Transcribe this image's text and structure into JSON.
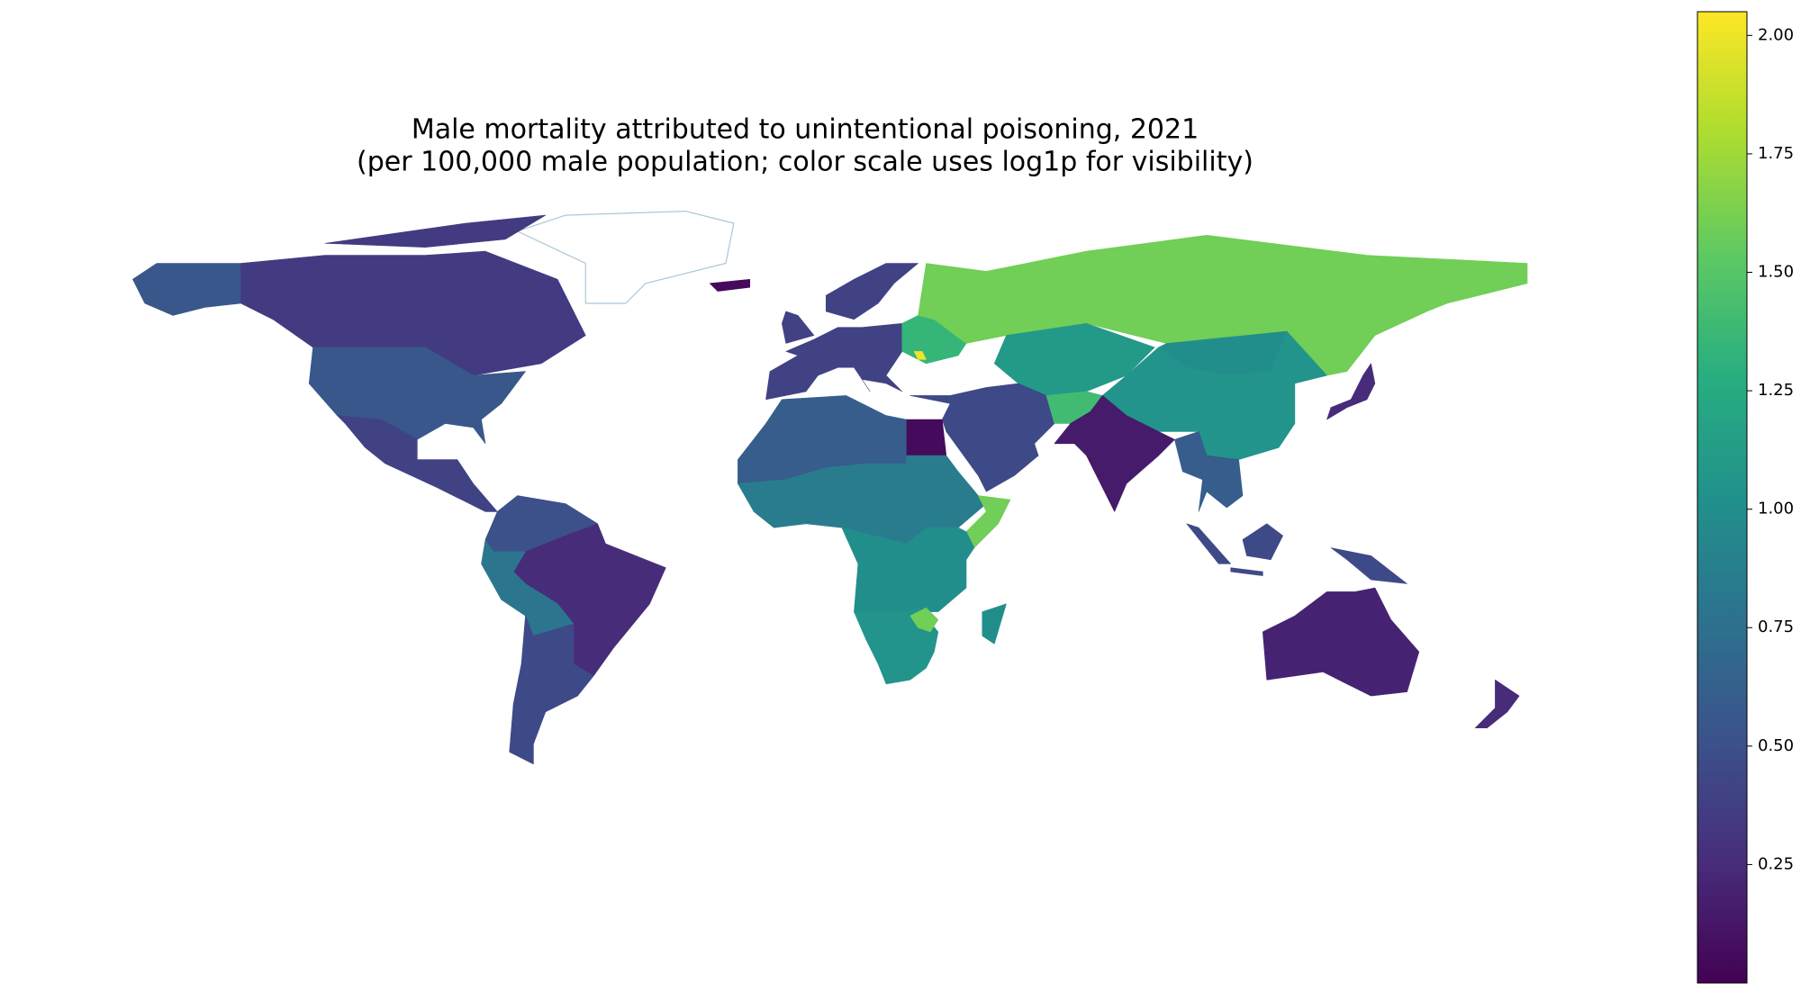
{
  "chart_data": {
    "type": "choropleth",
    "title": "Male mortality attributed to unintentional poisoning, 2021",
    "subtitle": "(per 100,000 male population; color scale uses log1p for visibility)",
    "colormap": "viridis",
    "clim": [
      0,
      2.05
    ],
    "cticks": [
      0.25,
      {
        "value": 0.5,
        "label": "0.50"
      },
      0.75,
      {
        "value": 1,
        "label": "1.00"
      },
      1.25,
      {
        "value": 1.5,
        "label": "1.50"
      },
      1.75,
      {
        "value": 2,
        "label": "2.00"
      }
    ],
    "values": [
      0.55,
      0.35,
      0.55,
      0.4,
      0.5,
      0.25,
      0.8,
      0.45,
      0.4,
      0.4,
      0.4,
      1.35,
      1.6,
      1.1,
      1.0,
      1.05,
      0.45,
      1.4,
      0.15,
      0.6,
      0.05,
      0.6,
      0.85,
      1.6,
      1.0,
      1.05,
      1.6,
      1.0,
      0.45,
      0.2,
      0.25,
      0.25,
      0.05,
      2.0
    ]
  }
}
